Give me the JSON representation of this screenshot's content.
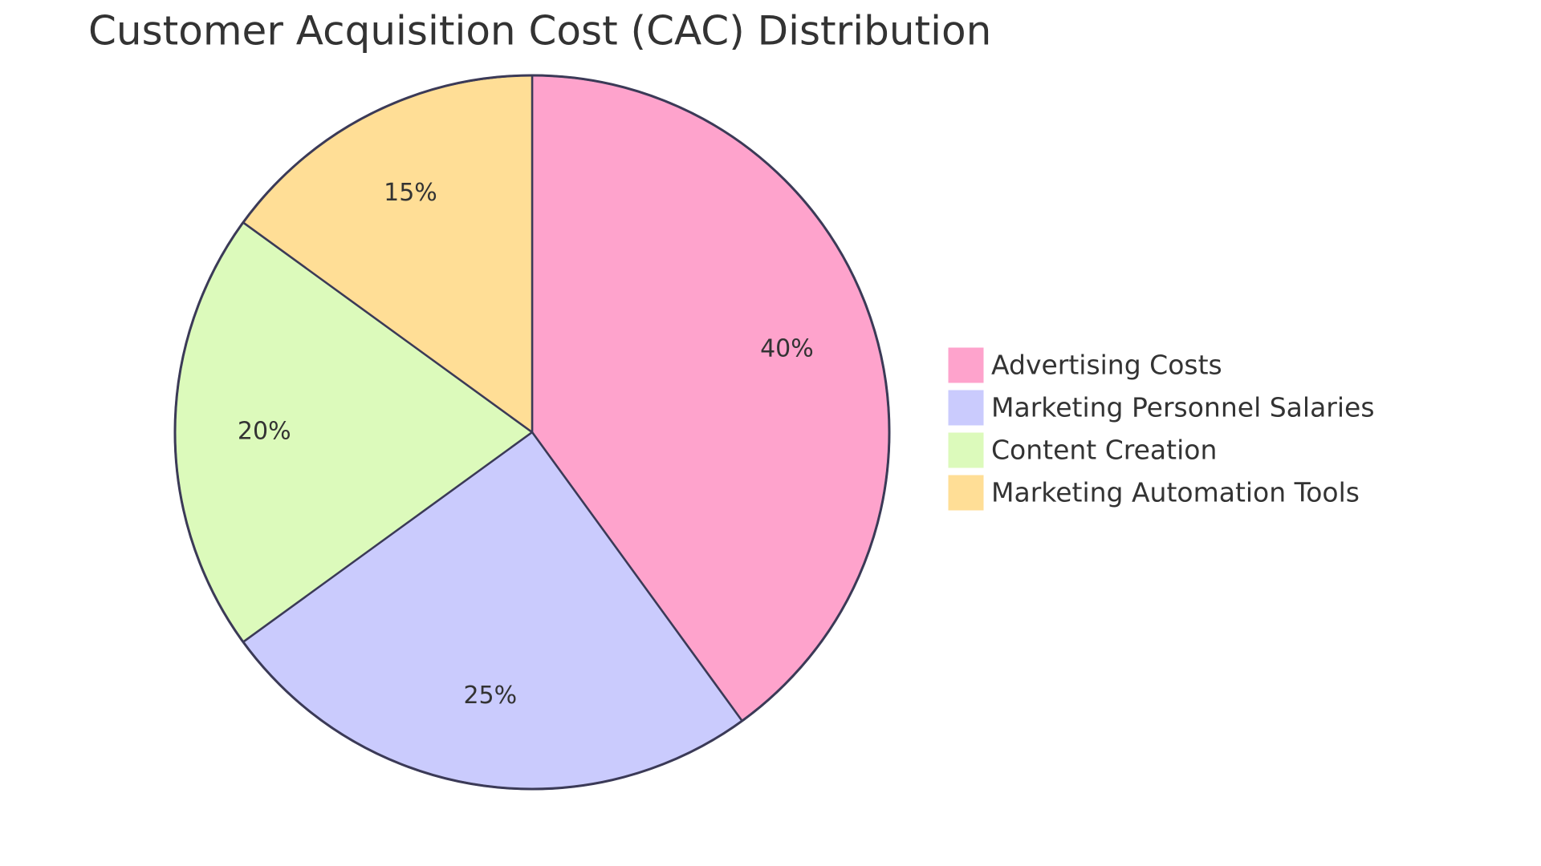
{
  "chart_data": {
    "type": "pie",
    "title": "Customer Acquisition Cost (CAC) Distribution",
    "categories": [
      "Advertising Costs",
      "Marketing Personnel Salaries",
      "Content Creation",
      "Marketing Automation Tools"
    ],
    "values": [
      40,
      25,
      20,
      15
    ],
    "value_labels": [
      "40%",
      "25%",
      "20%",
      "15%"
    ],
    "colors": [
      "#fea3cc",
      "#cacbfd",
      "#dcfabb",
      "#ffde96"
    ],
    "legend": "right"
  }
}
